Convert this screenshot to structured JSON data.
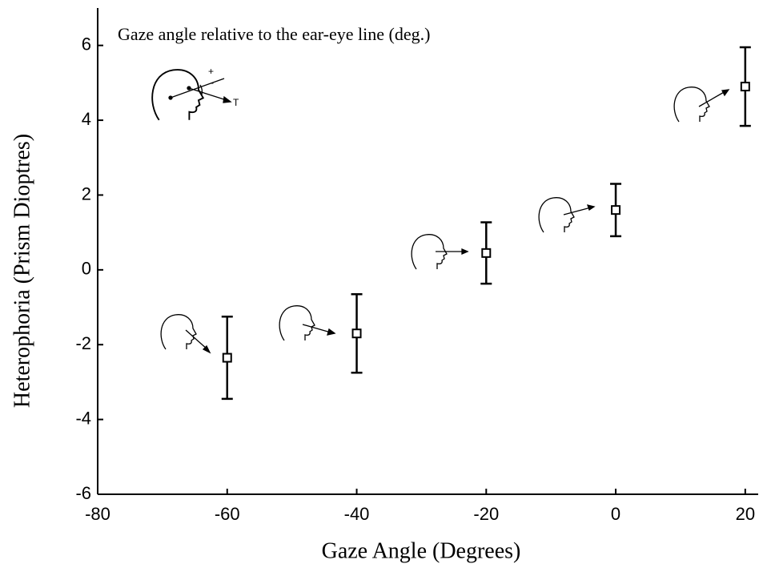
{
  "chart_data": {
    "type": "scatter",
    "x_label": "Gaze Angle (Degrees)",
    "y_label": "Heterophoria (Prism Dioptres)",
    "annotation": "Gaze angle relative to the ear-eye line (deg.)",
    "diagram_labels": [
      "+",
      "-",
      "T"
    ],
    "x": [
      -60,
      -40,
      -20,
      0,
      20
    ],
    "values": [
      -2.35,
      -1.7,
      0.45,
      1.6,
      4.9
    ],
    "errors": [
      1.1,
      1.05,
      0.82,
      0.7,
      1.05
    ],
    "color": "#000000",
    "xlim": [
      -80,
      22
    ],
    "xticks": [
      -80,
      -60,
      -40,
      -20,
      0,
      20
    ],
    "ylim": [
      -6,
      7
    ],
    "yticks": [
      -6,
      -4,
      -2,
      0,
      2,
      4,
      6
    ]
  }
}
